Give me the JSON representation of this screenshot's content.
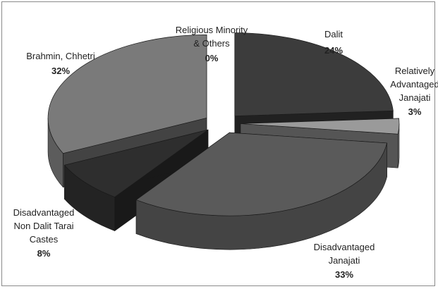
{
  "chart_data": {
    "type": "pie",
    "style": "3d-exploded",
    "slices": [
      {
        "name": "Dalit",
        "value": 24,
        "label_lines": [
          "Dalit"
        ],
        "pct": "24%",
        "color": "#3c3c3c"
      },
      {
        "name": "Relatively Advantaged Janajati",
        "value": 3,
        "label_lines": [
          "Relatively",
          "Advantaged",
          "Janajati"
        ],
        "pct": "3%",
        "color": "#9a9a9a"
      },
      {
        "name": "Disadvantaged Janajati",
        "value": 33,
        "label_lines": [
          "Disadvantaged",
          "Janajati"
        ],
        "pct": "33%",
        "color": "#5a5a5a"
      },
      {
        "name": "Disadvantaged Non Dalit Tarai Castes",
        "value": 8,
        "label_lines": [
          "Disadvantaged",
          "Non Dalit Tarai",
          "Castes"
        ],
        "pct": "8%",
        "color": "#2e2e2e"
      },
      {
        "name": "Brahmin, Chhetri",
        "value": 32,
        "label_lines": [
          "Brahmin, Chhetri"
        ],
        "pct": "32%",
        "color": "#7a7a7a"
      },
      {
        "name": "Religious Minority & Others",
        "value": 0,
        "label_lines": [
          "Religious Minority",
          "& Others"
        ],
        "pct": "0%",
        "color": "#d0d0d0"
      }
    ]
  }
}
